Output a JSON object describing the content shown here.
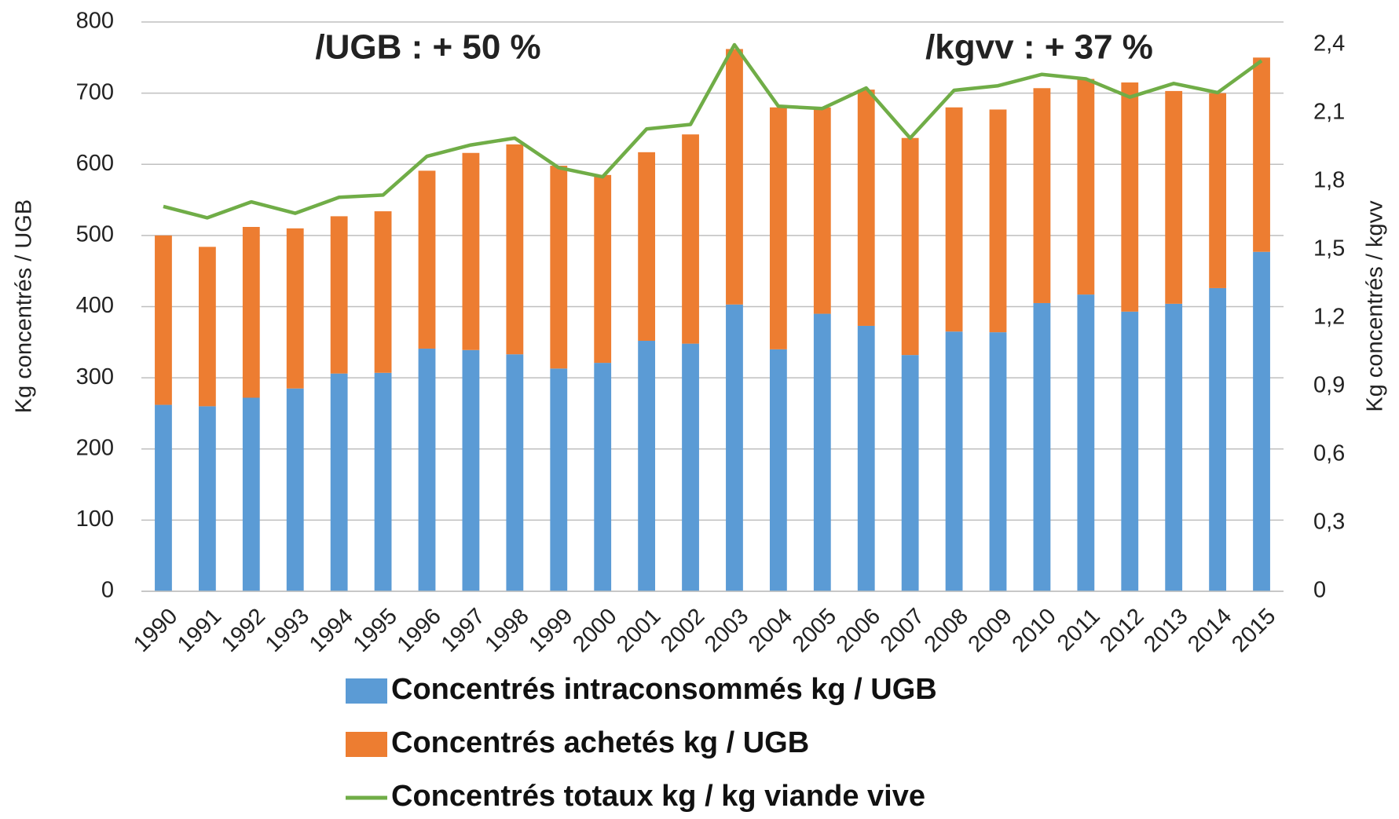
{
  "chart_data": {
    "type": "bar",
    "annotations": [
      {
        "text": "/UGB : + 50 %",
        "color": "#ff0000"
      },
      {
        "text": "/kgvv : + 37 %",
        "color": "#5b9a1f"
      }
    ],
    "ylabel": "Kg concentrés / UGB",
    "y2label": "Kg concentrés / kgvv",
    "categories": [
      "1990",
      "1991",
      "1992",
      "1993",
      "1994",
      "1995",
      "1996",
      "1997",
      "1998",
      "1999",
      "2000",
      "2001",
      "2002",
      "2003",
      "2004",
      "2005",
      "2006",
      "2007",
      "2008",
      "2009",
      "2010",
      "2011",
      "2012",
      "2013",
      "2014",
      "2015"
    ],
    "stacked": true,
    "series": [
      {
        "name": "Concentrés intraconsommés kg / UGB",
        "color": "#5b9bd5",
        "type": "bar",
        "values": [
          262,
          260,
          272,
          285,
          306,
          307,
          341,
          339,
          333,
          313,
          321,
          352,
          348,
          403,
          340,
          390,
          373,
          332,
          365,
          364,
          405,
          417,
          393,
          404,
          426,
          477
        ]
      },
      {
        "name": "Concentrés achetés kg / UGB",
        "color": "#ed7d31",
        "type": "bar",
        "values": [
          238,
          224,
          240,
          225,
          221,
          227,
          250,
          277,
          295,
          285,
          264,
          265,
          294,
          359,
          340,
          290,
          332,
          305,
          315,
          313,
          302,
          303,
          322,
          299,
          274,
          273
        ]
      },
      {
        "name": "Concentrés totaux kg / kg viande vive",
        "color": "#70ad47",
        "type": "line",
        "axis": "y2",
        "values": [
          1.69,
          1.64,
          1.71,
          1.66,
          1.73,
          1.74,
          1.91,
          1.96,
          1.99,
          1.86,
          1.82,
          2.03,
          2.05,
          2.4,
          2.13,
          2.12,
          2.21,
          1.99,
          2.2,
          2.22,
          2.27,
          2.25,
          2.17,
          2.23,
          2.19,
          2.33
        ]
      }
    ],
    "ylim": [
      0,
      800
    ],
    "yticks": [
      0,
      100,
      200,
      300,
      400,
      500,
      600,
      700,
      800
    ],
    "y2lim": [
      0,
      2.5
    ],
    "y2ticks": [
      0,
      {
        "value": 0.3,
        "label": "0,3"
      },
      {
        "value": 0.6,
        "label": "0,6"
      },
      {
        "value": 0.9,
        "label": "0,9"
      },
      {
        "value": 1.2,
        "label": "1,2"
      },
      {
        "value": 1.5,
        "label": "1,5"
      },
      {
        "value": 1.8,
        "label": "1,8"
      },
      {
        "value": 2.1,
        "label": "2,1"
      },
      {
        "value": 2.4,
        "label": "2,4"
      }
    ],
    "grid": true,
    "legend": "bottom"
  }
}
